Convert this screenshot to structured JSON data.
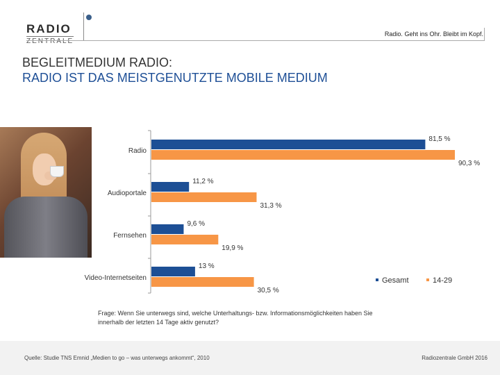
{
  "logo": {
    "radio": "RADIO",
    "zentrale": "ZENTRALE"
  },
  "slogan": "Radio. Geht ins Ohr. Bleibt im Kopf.",
  "title": {
    "line1": "BEGLEITMEDIUM RADIO:",
    "line2": "RADIO IST DAS MEISTGENUTZTE MOBILE MEDIUM"
  },
  "colors": {
    "gesamt": "#1d4f95",
    "teens": "#f79646",
    "title_blue": "#1e4f96"
  },
  "chart_data": {
    "type": "bar",
    "orientation": "horizontal",
    "title": "",
    "xlabel": "",
    "ylabel": "",
    "xlim": [
      0,
      100
    ],
    "grid": false,
    "legend_position": "bottom-right",
    "categories": [
      "Radio",
      "Audioportale",
      "Fernsehen",
      "Video-Internetseiten"
    ],
    "series": [
      {
        "name": "Gesamt",
        "values": [
          81.5,
          11.2,
          9.6,
          13.0
        ],
        "labels": [
          "81,5 %",
          "11,2 %",
          "9,6 %",
          "13 %"
        ]
      },
      {
        "name": "14-29",
        "values": [
          90.3,
          31.3,
          19.9,
          30.5
        ],
        "labels": [
          "90,3 %",
          "31,3 %",
          "19,9 %",
          "30,5 %"
        ]
      }
    ]
  },
  "question": "Frage: Wenn Sie unterwegs sind, welche Unterhaltungs- bzw. Informationsmöglichkeiten haben Sie innerhalb der letzten 14 Tage aktiv genutzt?",
  "footer": {
    "source": "Quelle: Studie TNS Emnid „Medien to go – was unterwegs ankommt“, 2010",
    "copyright": "Radiozentrale GmbH 2016"
  }
}
